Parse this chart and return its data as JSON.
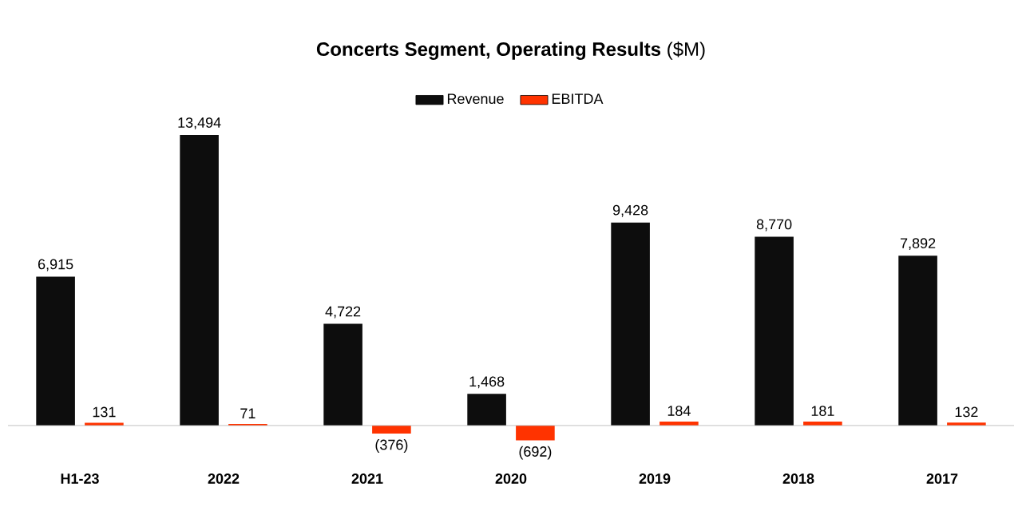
{
  "chart_data": {
    "type": "bar",
    "title": "**Concerts Segment, Operating Results** ($M)",
    "categories": [
      "H1-23",
      "2022",
      "2021",
      "2020",
      "2019",
      "2018",
      "2017"
    ],
    "series": [
      {
        "name": "Revenue",
        "color": "#0d0d0d",
        "values": [
          6915,
          13494,
          4722,
          1468,
          9428,
          8770,
          7892
        ],
        "value_labels": [
          "6,915",
          "13,494",
          "4,722",
          "1,468",
          "9,428",
          "8,770",
          "7,892"
        ]
      },
      {
        "name": "EBITDA",
        "color": "#ff3300",
        "values": [
          131,
          71,
          -376,
          -692,
          184,
          181,
          132
        ],
        "value_labels": [
          "131",
          "71",
          "(376)",
          "(692)",
          "184",
          "181",
          "132"
        ]
      }
    ],
    "legend": "top"
  }
}
